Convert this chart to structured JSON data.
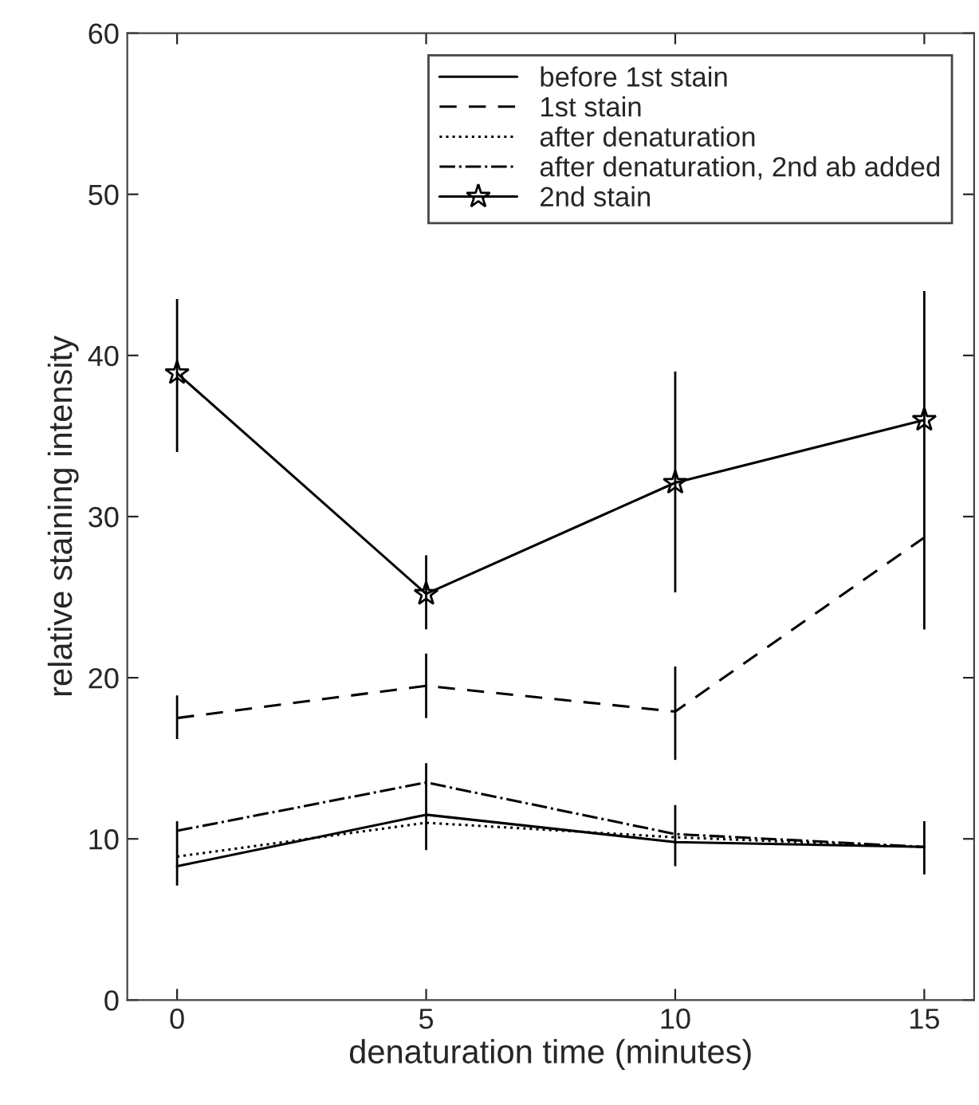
{
  "chart_data": {
    "type": "line",
    "xlabel": "denaturation time (minutes)",
    "ylabel": "relative staining intensity",
    "x": [
      0,
      5,
      10,
      15
    ],
    "xlim": [
      -1,
      16
    ],
    "xticks": [
      0,
      5,
      10,
      15
    ],
    "ylim": [
      0,
      60
    ],
    "yticks": [
      0,
      10,
      20,
      30,
      40,
      50,
      60
    ],
    "grid": false,
    "legend": "top right",
    "series": [
      {
        "name": "before 1st stain",
        "color": "#000000",
        "line_style": "solid",
        "marker": "none",
        "values": [
          8.3,
          11.5,
          9.8,
          9.5
        ],
        "errors": [
          [
            7.1,
            11.1
          ],
          [
            9.3,
            14.7
          ],
          [
            8.3,
            12.1
          ],
          [
            7.8,
            11.1
          ]
        ]
      },
      {
        "name": "1st stain",
        "color": "#000000",
        "line_style": "dashed",
        "marker": "none",
        "values": [
          17.5,
          19.5,
          17.9,
          28.7
        ],
        "errors": [
          [
            16.2,
            18.9
          ],
          [
            17.5,
            21.5
          ],
          [
            14.9,
            20.7
          ],
          null
        ]
      },
      {
        "name": "after denaturation",
        "color": "#000000",
        "line_style": "dotted",
        "marker": "none",
        "values": [
          8.9,
          11.0,
          10.1,
          9.5
        ]
      },
      {
        "name": "after denaturation, 2nd ab added",
        "color": "#000000",
        "line_style": "dashdot",
        "marker": "none",
        "values": [
          10.5,
          13.5,
          10.3,
          9.5
        ]
      },
      {
        "name": "2nd stain",
        "color": "#000000",
        "line_style": "solid",
        "marker": "star",
        "values": [
          38.9,
          25.2,
          32.1,
          36.0
        ],
        "errors": [
          [
            34.0,
            43.5
          ],
          [
            23.0,
            27.6
          ],
          [
            25.3,
            39.0
          ],
          [
            23.0,
            44.0
          ]
        ]
      }
    ]
  }
}
